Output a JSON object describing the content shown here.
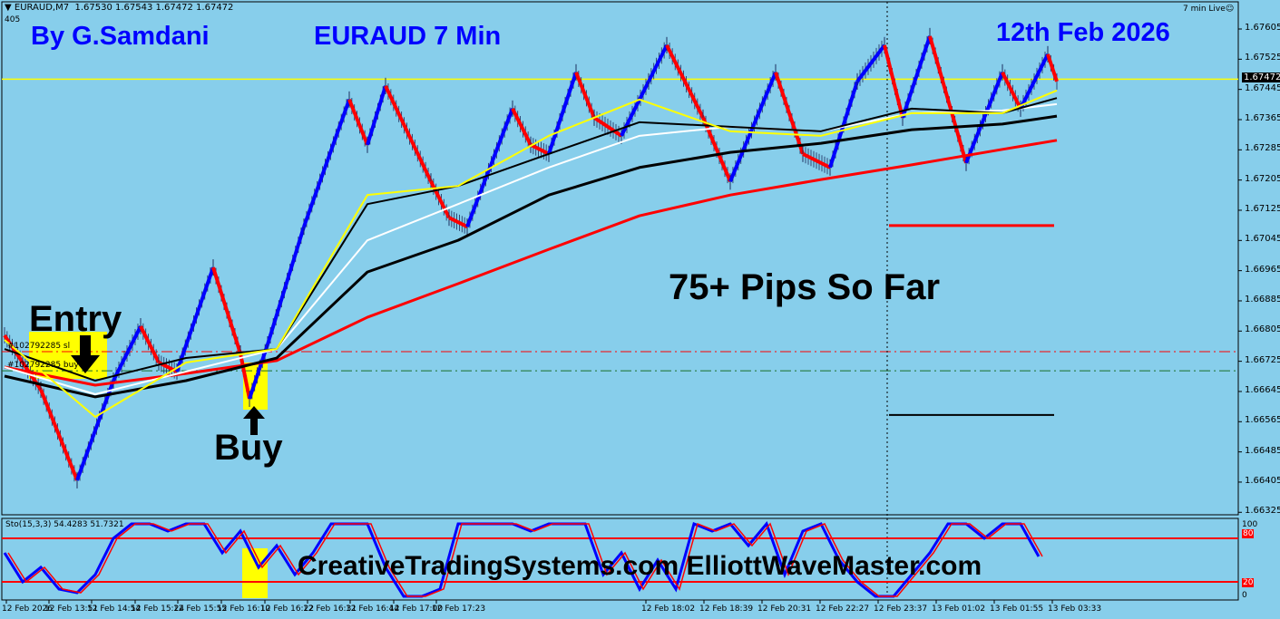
{
  "header": {
    "symbol": "EURAUD,M7",
    "ohlc": "1.67530 1.67543 1.67472 1.67472",
    "sub": "405",
    "live": "7 min Live"
  },
  "annotations": {
    "author": "By G.Samdani",
    "pair": "EURAUD 7 Min",
    "date": "12th Feb 2026",
    "result": "75+ Pips So Far",
    "entry": "Entry",
    "buy": "Buy",
    "sites": "CreativeTradingSystems.com  ElliottWaveMaster.com",
    "sl_label": "#102792285 sl",
    "buy_label": "#102792285 buy"
  },
  "colors": {
    "background": "#87CEEB",
    "up": "#0000FF",
    "down": "#FF0000",
    "text_blue": "#0000FF",
    "current_price_line": "#FFFF00"
  },
  "icons": {
    "entry_arrow": "arrow-down",
    "buy_arrow": "arrow-up",
    "live": "smiley-icon"
  },
  "chart_data": [
    {
      "type": "line",
      "title": "EURAUD,M7",
      "ylim": [
        1.66325,
        1.67605
      ],
      "yticks": [
        "1.67605",
        "1.67525",
        "1.67445",
        "1.67365",
        "1.67285",
        "1.67205",
        "1.67125",
        "1.67045",
        "1.66965",
        "1.66885",
        "1.66805",
        "1.66725",
        "1.66645",
        "1.66565",
        "1.66485",
        "1.66405",
        "1.66325"
      ],
      "current_price": "1.67472",
      "xticks": [
        "12 Feb 2026",
        "12 Feb 13:51",
        "12 Feb 14:54",
        "12 Feb 15:24",
        "12 Feb 15:55",
        "12 Feb 16:10",
        "12 Feb 16:22",
        "12 Feb 16:31",
        "12 Feb 16:44",
        "12 Feb 17:00",
        "12 Feb 17:23",
        "12 Feb 18:02",
        "12 Feb 18:39",
        "12 Feb 20:31",
        "12 Feb 22:27",
        "12 Feb 23:37",
        "13 Feb 01:02",
        "13 Feb 01:55",
        "13 Feb 03:33"
      ],
      "price_path": {
        "bar": [
          0,
          2,
          4,
          8,
          12,
          15,
          17,
          19,
          23,
          26,
          27,
          29,
          33,
          38,
          40,
          42,
          47,
          49,
          51,
          56,
          58,
          60,
          63,
          65,
          68,
          71,
          73,
          77,
          80,
          85,
          88,
          91,
          94,
          97,
          99,
          102,
          106,
          110,
          112,
          115,
          116
        ],
        "price": [
          1.66793,
          1.66721,
          1.66649,
          1.66409,
          1.66673,
          1.66817,
          1.66721,
          1.66697,
          1.66973,
          1.66745,
          1.66625,
          1.66769,
          1.67081,
          1.67418,
          1.67298,
          1.67454,
          1.67201,
          1.67105,
          1.67081,
          1.67394,
          1.67298,
          1.67274,
          1.6749,
          1.6737,
          1.67322,
          1.67466,
          1.67562,
          1.6737,
          1.67201,
          1.6749,
          1.67274,
          1.67238,
          1.67466,
          1.67562,
          1.6737,
          1.67586,
          1.6725,
          1.6749,
          1.67394,
          1.67538,
          1.67466
        ]
      },
      "ma_bars": [
        0,
        10,
        20,
        30,
        40,
        50,
        60,
        70,
        80,
        90,
        100,
        110,
        116
      ],
      "series": [
        {
          "color": "#FF0000",
          "values": [
            1.66709,
            1.66661,
            1.66692,
            1.66726,
            1.66841,
            1.6693,
            1.67021,
            1.6711,
            1.67165,
            1.67206,
            1.67245,
            1.67286,
            1.6731
          ]
        },
        {
          "color": "#000000",
          "values": [
            1.66685,
            1.6663,
            1.66673,
            1.66733,
            1.66961,
            1.67045,
            1.67165,
            1.67238,
            1.67278,
            1.67302,
            1.67338,
            1.67353,
            1.67374
          ]
        },
        {
          "color": "#FFFFFF",
          "values": [
            1.66709,
            1.66637,
            1.66697,
            1.66757,
            1.67045,
            1.67141,
            1.67238,
            1.67322,
            1.67346,
            1.67334,
            1.67382,
            1.67389,
            1.67406
          ]
        },
        {
          "color": "#000000",
          "values": [
            1.66757,
            1.66673,
            1.66733,
            1.66757,
            1.67141,
            1.67189,
            1.67274,
            1.67358,
            1.67346,
            1.67334,
            1.67394,
            1.67382,
            1.67422
          ]
        },
        {
          "color": "#FFFF00",
          "values": [
            1.66781,
            1.66577,
            1.66721,
            1.66757,
            1.67165,
            1.67189,
            1.67322,
            1.67418,
            1.67334,
            1.67322,
            1.67382,
            1.67382,
            1.67442
          ]
        }
      ],
      "levels": {
        "sl": 1.6675,
        "entry": 1.66699,
        "target_red": 1.67084,
        "target_black": 1.66582
      }
    },
    {
      "type": "line",
      "title": "Sto(15,3,3) 54.4283 51.7321",
      "ylim": [
        0,
        100
      ],
      "yticks": [
        "100",
        "80",
        "20",
        "0"
      ],
      "levels": [
        80,
        20
      ],
      "values": [
        60,
        20,
        40,
        10,
        5,
        30,
        80,
        100,
        100,
        90,
        100,
        100,
        60,
        90,
        40,
        70,
        30,
        60,
        100,
        100,
        100,
        40,
        0,
        0,
        10,
        100,
        100,
        100,
        100,
        90,
        100,
        100,
        100,
        30,
        60,
        10,
        50,
        10,
        100,
        90,
        100,
        70,
        100,
        30,
        90,
        100,
        50,
        20,
        0,
        0,
        30,
        60,
        100,
        100,
        80,
        100,
        100,
        55
      ]
    }
  ]
}
